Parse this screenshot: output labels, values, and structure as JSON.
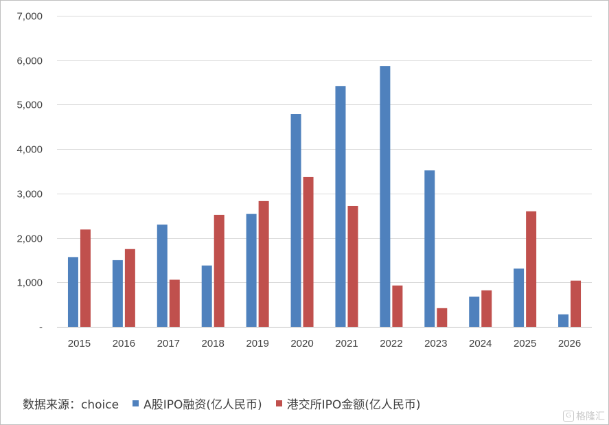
{
  "chart_data": {
    "type": "bar",
    "categories": [
      "2015",
      "2016",
      "2017",
      "2018",
      "2019",
      "2020",
      "2021",
      "2022",
      "2023",
      "2024",
      "2025",
      "2026"
    ],
    "series": [
      {
        "name": "A股IPO融资(亿人民币)",
        "color": "#4f81bd",
        "values": [
          1570,
          1500,
          2300,
          1380,
          2540,
          4790,
          5420,
          5870,
          3520,
          680,
          1310,
          280
        ]
      },
      {
        "name": "港交所IPO金额(亿人民币)",
        "color": "#c0504d",
        "values": [
          2190,
          1750,
          1060,
          2520,
          2830,
          3370,
          2720,
          930,
          420,
          820,
          2600,
          1040
        ]
      }
    ],
    "ylim": [
      0,
      7000
    ],
    "yticks": [
      0,
      1000,
      2000,
      3000,
      4000,
      5000,
      6000,
      7000
    ],
    "ytick_labels": [
      "-",
      "1,000",
      "2,000",
      "3,000",
      "4,000",
      "5,000",
      "6,000",
      "7,000"
    ],
    "grid": true,
    "legend_position": "bottom"
  },
  "legend": {
    "source_label": "数据来源：choice"
  },
  "watermark": {
    "text": "格隆汇",
    "logo_glyph": "G"
  }
}
